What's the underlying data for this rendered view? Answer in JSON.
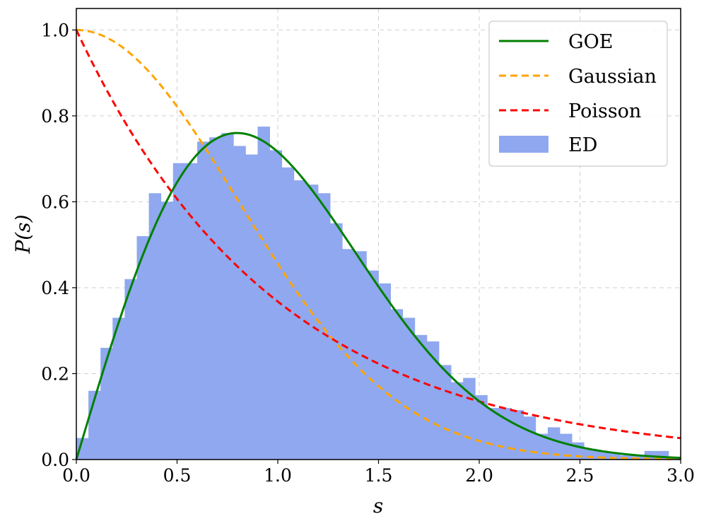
{
  "chart_data": {
    "type": "histogram-with-lines",
    "xlabel": "s",
    "ylabel": "P(s)",
    "xlim": [
      0.0,
      3.0
    ],
    "ylim": [
      0.0,
      1.05
    ],
    "xticks": [
      0.0,
      0.5,
      1.0,
      1.5,
      2.0,
      2.5,
      3.0
    ],
    "xtick_labels": [
      "0.0",
      "0.5",
      "1.0",
      "1.5",
      "2.0",
      "2.5",
      "3.0"
    ],
    "yticks": [
      0.0,
      0.2,
      0.4,
      0.6,
      0.8,
      1.0
    ],
    "ytick_labels": [
      "0.0",
      "0.2",
      "0.4",
      "0.6",
      "0.8",
      "1.0"
    ],
    "grid": true,
    "legend_position": "top-right",
    "colors": {
      "GOE": "#008000",
      "Gaussian": "#ffa500",
      "Poisson": "#ff0000",
      "ED": "#8fa8ef"
    },
    "series": [
      {
        "name": "GOE",
        "kind": "line",
        "style": "solid",
        "formula": "(pi/2) s exp(-pi s^2 / 4)"
      },
      {
        "name": "Gaussian",
        "kind": "line",
        "style": "dashed",
        "formula": "exp(-pi s^2 / 4)"
      },
      {
        "name": "Poisson",
        "kind": "line",
        "style": "dashed",
        "formula": "exp(-s)"
      },
      {
        "name": "ED",
        "kind": "histogram",
        "bin_width": 0.06,
        "bin_start": 0.0,
        "values": [
          0.05,
          0.16,
          0.26,
          0.33,
          0.42,
          0.52,
          0.62,
          0.6,
          0.69,
          0.69,
          0.74,
          0.75,
          0.76,
          0.73,
          0.71,
          0.775,
          0.72,
          0.68,
          0.65,
          0.64,
          0.62,
          0.55,
          0.49,
          0.485,
          0.44,
          0.41,
          0.35,
          0.33,
          0.29,
          0.275,
          0.22,
          0.18,
          0.19,
          0.15,
          0.12,
          0.12,
          0.115,
          0.1,
          0.06,
          0.075,
          0.06,
          0.04,
          0.025,
          0.02,
          0.015,
          0.01,
          0.01,
          0.02,
          0.02,
          0.005
        ]
      }
    ]
  }
}
